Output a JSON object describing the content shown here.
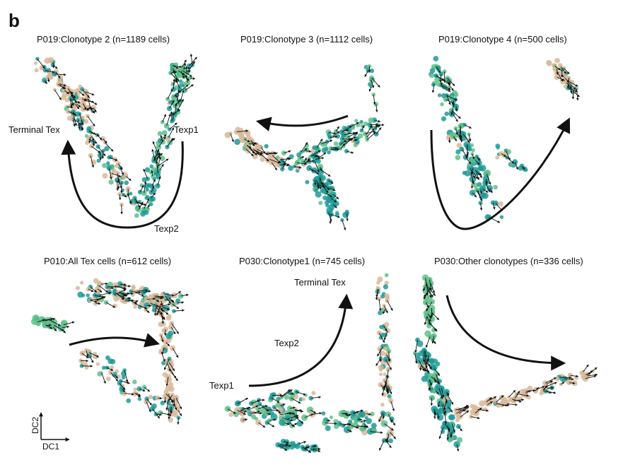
{
  "panel_letter": "b",
  "colors": {
    "green": "#5fc08a",
    "teal": "#1f9a96",
    "tan": "#d8b89a",
    "arrow": "#111111"
  },
  "axes_key": {
    "x_label": "DC1",
    "y_label": "DC2"
  },
  "chart_data": [
    {
      "type": "scatter",
      "title": "P019:Clonotype 2 (n=1189 cells)",
      "annotations": [
        "Terminal Tex",
        "Texp1",
        "Texp2"
      ],
      "trajectory": "Texp1 → Texp2 → Terminal Tex"
    },
    {
      "type": "scatter",
      "title": "P019:Clonotype 3 (n=1112 cells)",
      "annotations": []
    },
    {
      "type": "scatter",
      "title": "P019:Clonotype 4 (n=500 cells)",
      "annotations": []
    },
    {
      "type": "scatter",
      "title": "P010:All Tex cells (n=612 cells)",
      "annotations": []
    },
    {
      "type": "scatter",
      "title": "P030:Clonotype1 (n=745 cells)",
      "annotations": [
        "Terminal Tex",
        "Texp2",
        "Texp1"
      ],
      "trajectory": "Texp1 → Texp2 → Terminal Tex"
    },
    {
      "type": "scatter",
      "title": "P030:Other clonotypes (n=336 cells)",
      "annotations": []
    }
  ]
}
